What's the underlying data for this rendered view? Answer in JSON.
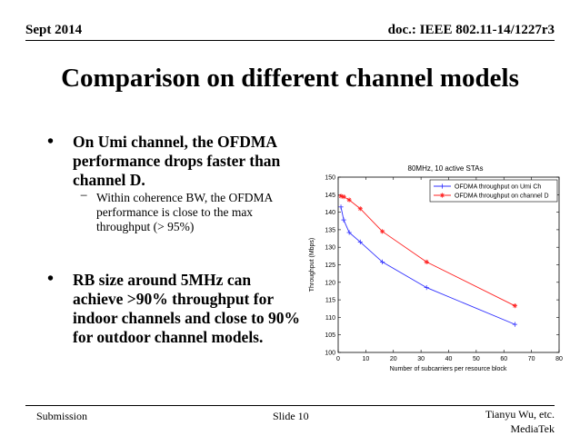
{
  "header": {
    "date": "Sept 2014",
    "doc_id": "doc.: IEEE 802.11-14/1227r3"
  },
  "title": "Comparison on different channel models",
  "bullets": [
    {
      "marker": "•",
      "lines": [
        "On Umi channel, the OFDMA",
        "performance drops faster than",
        "channel D."
      ],
      "sub": {
        "marker": "−",
        "lines": [
          "Within coherence BW, the OFDMA",
          "performance is close to the max",
          "throughput (> 95%)"
        ]
      }
    },
    {
      "marker": "•",
      "lines": [
        "RB size around 5MHz can",
        "achieve >90% throughput for",
        "indoor channels and close to 90%",
        "for outdoor channel models."
      ]
    }
  ],
  "footer": {
    "left": "Submission",
    "center": "Slide 10",
    "author": "Tianyu Wu, etc.",
    "affiliation": "MediaTek"
  },
  "chart_data": {
    "type": "line",
    "title": "80MHz, 10 active STAs",
    "xlabel": "Number of subcarriers per resource block",
    "ylabel": "Throughput (Mbps)",
    "xlim": [
      0,
      80
    ],
    "ylim": [
      100,
      150
    ],
    "xticks": [
      0,
      10,
      20,
      30,
      40,
      50,
      60,
      70,
      80
    ],
    "yticks": [
      100,
      105,
      110,
      115,
      120,
      125,
      130,
      135,
      140,
      145,
      150
    ],
    "grid": false,
    "legend": "top-right",
    "series": [
      {
        "name": "OFDMA throughput on Umi Ch",
        "color": "#2f2fff",
        "marker": "plus",
        "x": [
          1,
          2,
          4,
          8,
          16,
          32,
          64
        ],
        "y": [
          141.5,
          137.8,
          134.2,
          131.5,
          125.8,
          118.5,
          108
        ]
      },
      {
        "name": "OFDMA throughput on channel D",
        "color": "#ff2020",
        "marker": "star",
        "x": [
          1,
          2,
          4,
          8,
          16,
          32,
          64
        ],
        "y": [
          144.6,
          144.4,
          143.5,
          141,
          134.5,
          125.8,
          113.3
        ]
      }
    ]
  }
}
